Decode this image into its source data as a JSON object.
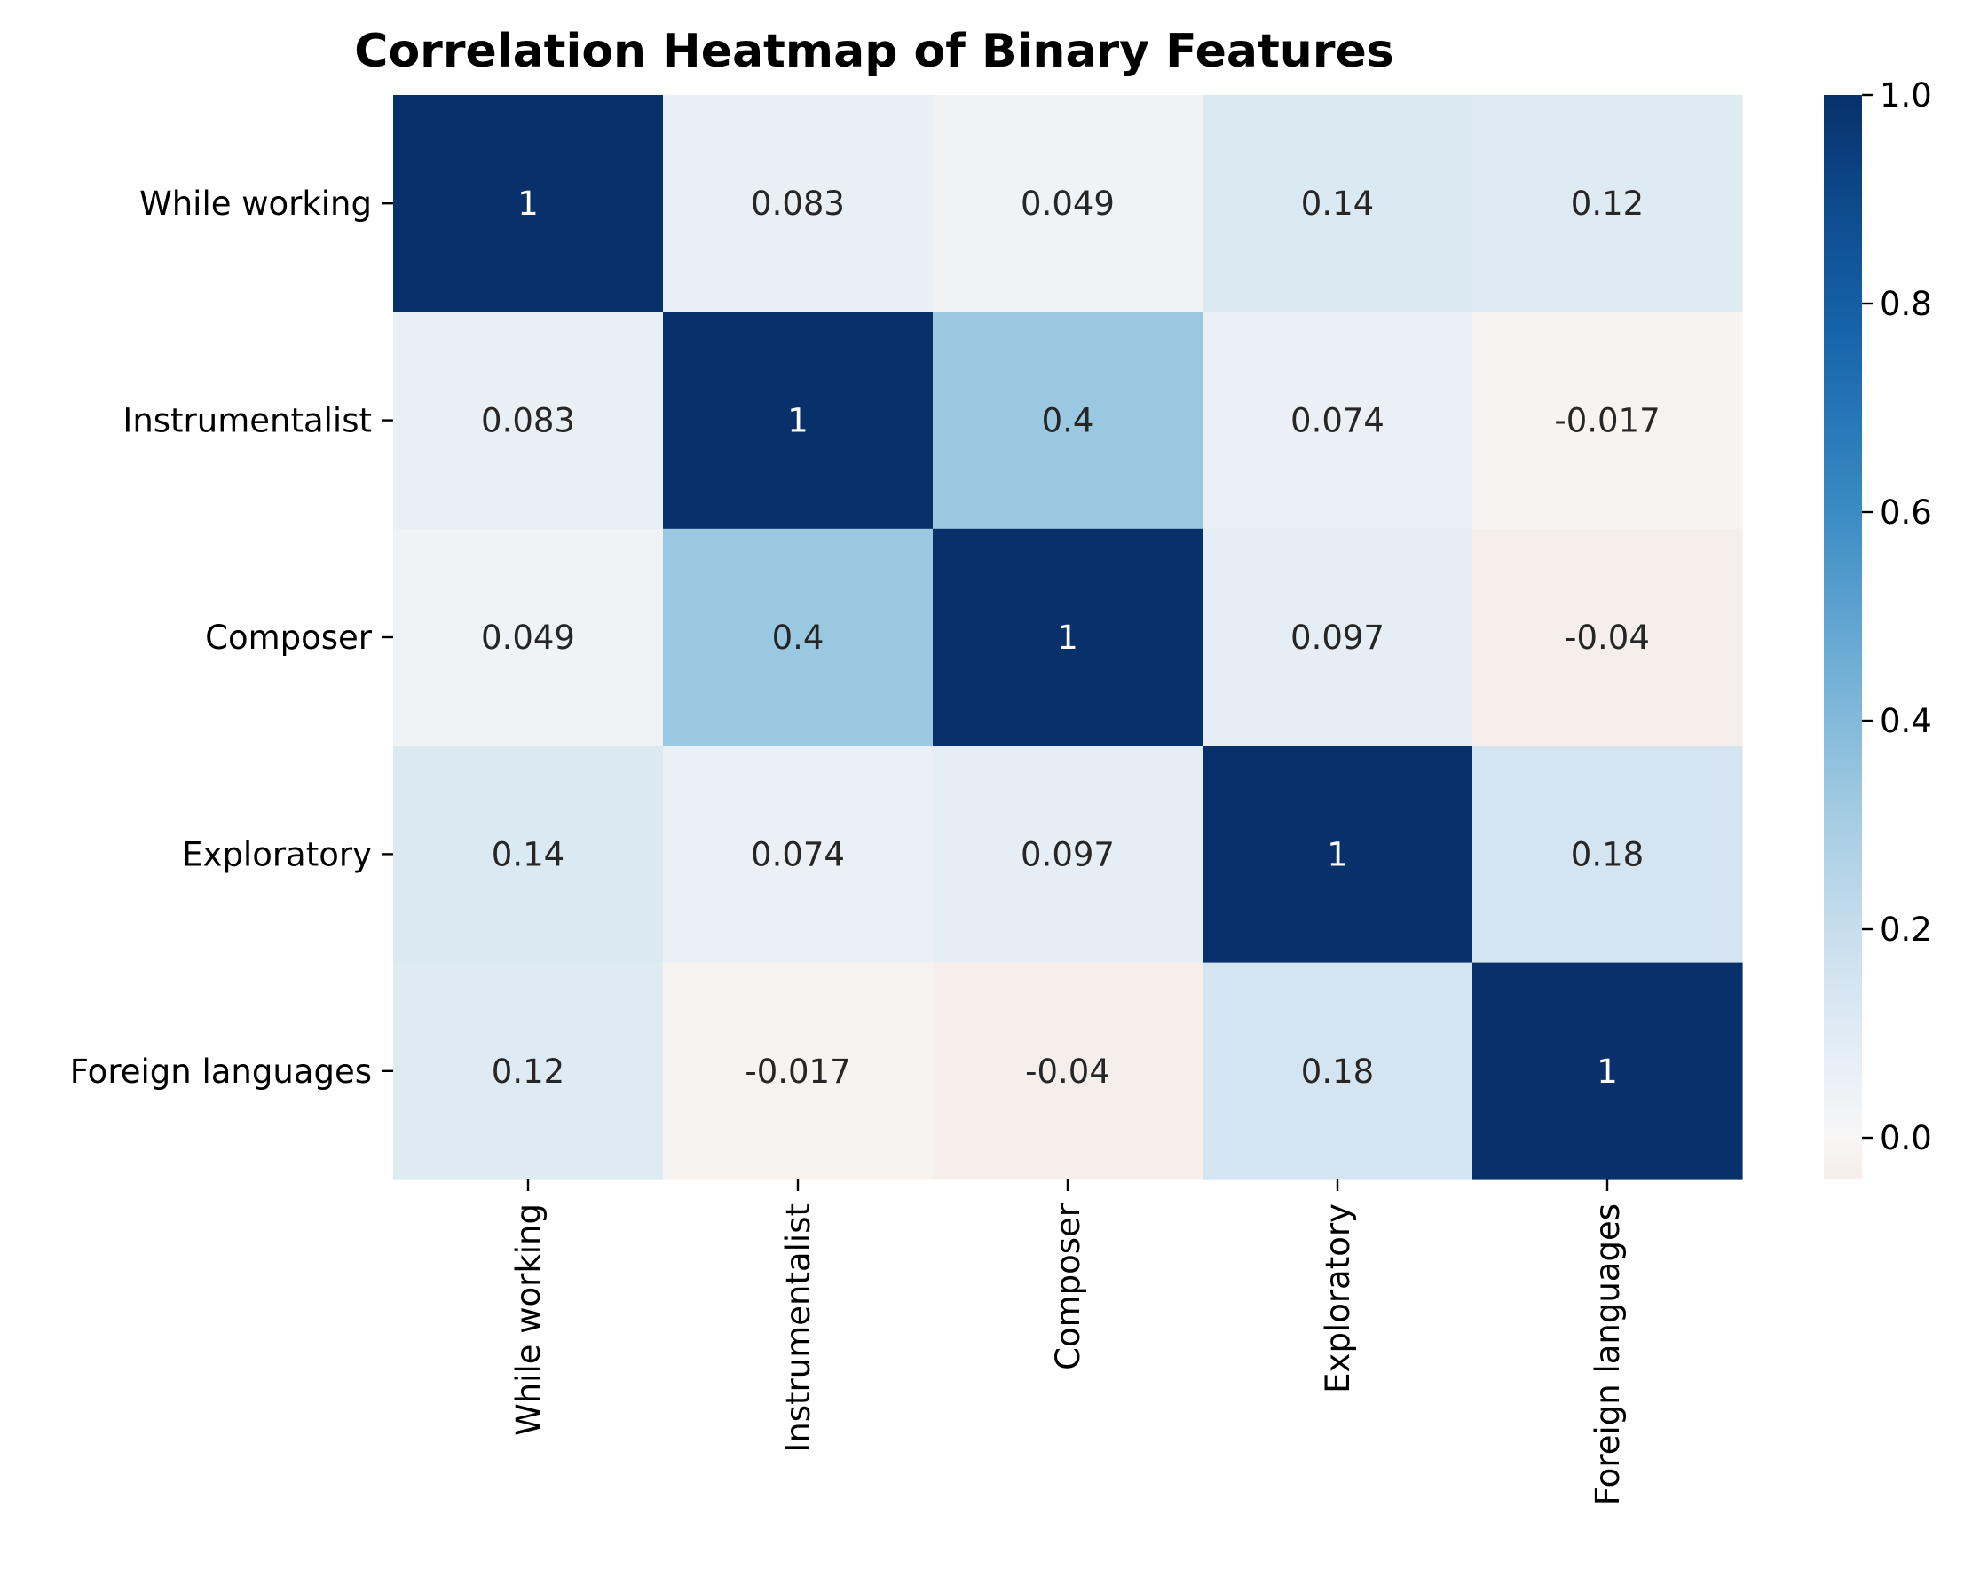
{
  "chart_data": {
    "type": "heatmap",
    "title": "Correlation Heatmap of Binary Features",
    "xlabel": "",
    "ylabel": "",
    "row_labels": [
      "While working",
      "Instrumentalist",
      "Composer",
      "Exploratory",
      "Foreign languages"
    ],
    "col_labels": [
      "While working",
      "Instrumentalist",
      "Composer",
      "Exploratory",
      "Foreign languages"
    ],
    "values": [
      [
        1,
        0.083,
        0.049,
        0.14,
        0.12
      ],
      [
        0.083,
        1,
        0.4,
        0.074,
        -0.017
      ],
      [
        0.049,
        0.4,
        1,
        0.097,
        -0.04
      ],
      [
        0.14,
        0.074,
        0.097,
        1,
        0.18
      ],
      [
        0.12,
        -0.017,
        -0.04,
        0.18,
        1
      ]
    ],
    "cell_labels": [
      [
        "1",
        "0.083",
        "0.049",
        "0.14",
        "0.12"
      ],
      [
        "0.083",
        "1",
        "0.4",
        "0.074",
        "-0.017"
      ],
      [
        "0.049",
        "0.4",
        "1",
        "0.097",
        "-0.04"
      ],
      [
        "0.14",
        "0.074",
        "0.097",
        "1",
        "0.18"
      ],
      [
        "0.12",
        "-0.017",
        "-0.04",
        "0.18",
        "1"
      ]
    ],
    "colorbar": {
      "range": [
        -0.04,
        1.0
      ],
      "ticks": [
        0.0,
        0.2,
        0.4,
        0.6,
        0.8,
        1.0
      ],
      "tick_labels": [
        "0.0",
        "0.2",
        "0.4",
        "0.6",
        "0.8",
        "1.0"
      ],
      "colormap": "RdBu (centered at 0)"
    },
    "colors": {
      "max": "#08306b",
      "zero": "#f7f6f6",
      "min": "#f6eeea",
      "light_text": "#ffffff",
      "dark_text": "#262626"
    },
    "grid": false,
    "legend": "colorbar-right"
  }
}
